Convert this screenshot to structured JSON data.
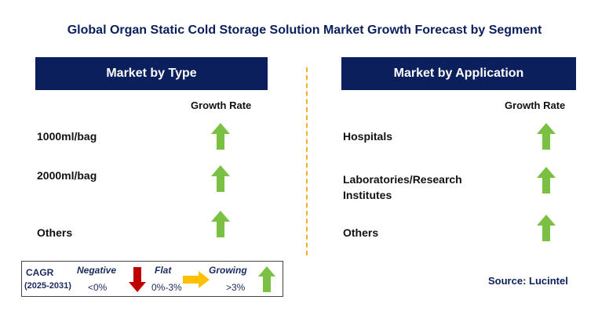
{
  "title": "Global Organ Static Cold Storage Solution Market Growth Forecast by Segment",
  "left_panel": {
    "header": "Market by Type",
    "growth_rate_label": "Growth Rate",
    "items": [
      {
        "label": "1000ml/bag",
        "trend": "growing"
      },
      {
        "label": "2000ml/bag",
        "trend": "growing"
      },
      {
        "label": "Others",
        "trend": "growing"
      }
    ]
  },
  "right_panel": {
    "header": "Market by Application",
    "growth_rate_label": "Growth Rate",
    "items": [
      {
        "label": "Hospitals",
        "trend": "growing"
      },
      {
        "label_line1": "Laboratories/Research",
        "label_line2": "Institutes",
        "trend": "growing"
      },
      {
        "label": "Others",
        "trend": "growing"
      }
    ]
  },
  "legend": {
    "cagr_label": "CAGR",
    "period": "(2025-2031)",
    "negative": {
      "label": "Negative",
      "value": "<0%"
    },
    "flat": {
      "label": "Flat",
      "value": "0%-3%"
    },
    "growing": {
      "label": "Growing",
      "value": ">3%"
    }
  },
  "source": "Source: Lucintel",
  "colors": {
    "header_bg": "#0b1f5c",
    "growing_arrow": "#7ac143",
    "negative_arrow": "#c00000",
    "flat_arrow": "#ffc000",
    "divider": "#f0b323"
  }
}
